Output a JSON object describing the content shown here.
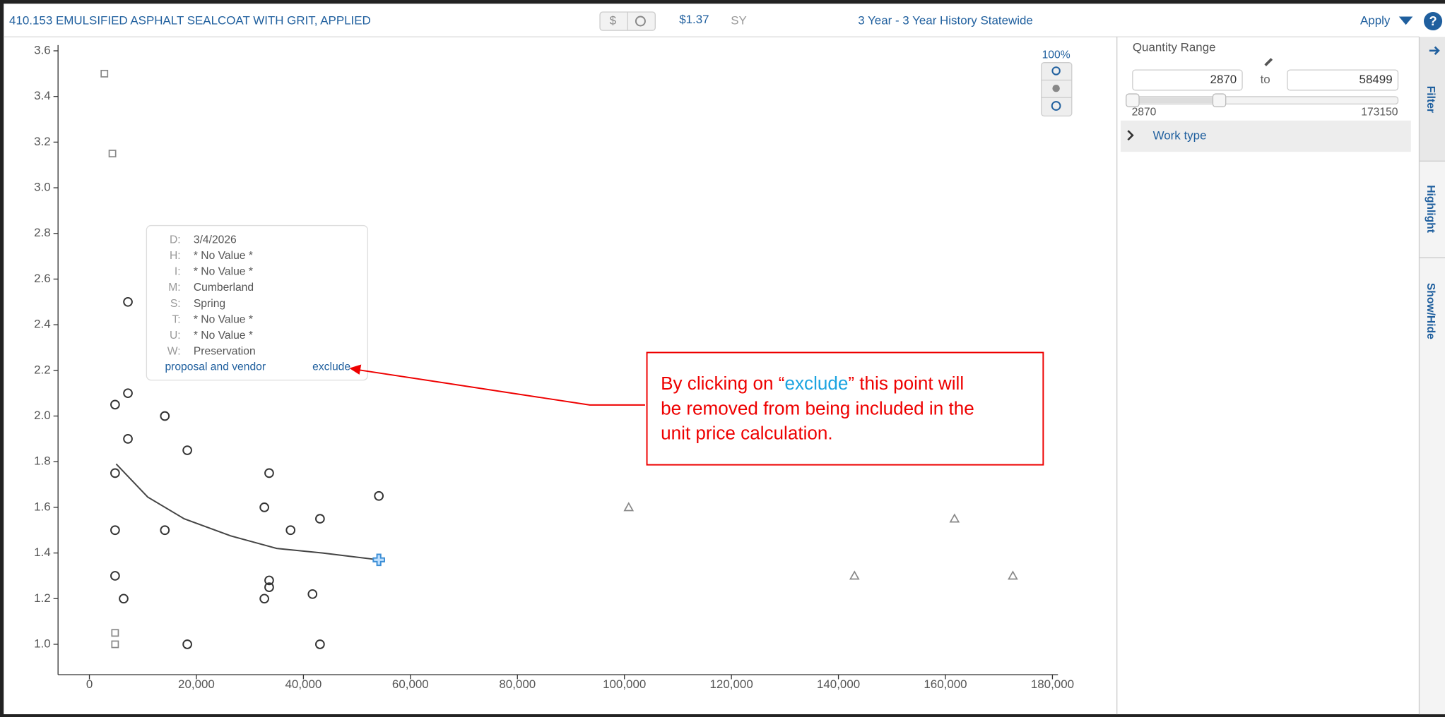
{
  "topbar": {
    "item": "410.153 EMULSIFIED ASPHALT SEALCOAT WITH GRIT, APPLIED",
    "dollar": "$",
    "price": "$1.37",
    "unit": "SY",
    "history": "3 Year - 3 Year History Statewide",
    "apply": "Apply"
  },
  "zoom": {
    "label": "100%"
  },
  "chart_data": {
    "type": "scatter",
    "xlim": [
      -5860,
      181030
    ],
    "ylim": [
      0.867,
      3.625
    ],
    "xticks": [
      0,
      {
        "value": 20000,
        "label": "20,000"
      },
      {
        "value": 40000,
        "label": "40,000"
      },
      {
        "value": 60000,
        "label": "60,000"
      },
      {
        "value": 80000,
        "label": "80,000"
      },
      {
        "value": 100000,
        "label": "100,000"
      },
      {
        "value": 120000,
        "label": "120,000"
      },
      {
        "value": 140000,
        "label": "140,000"
      },
      {
        "value": 160000,
        "label": "160,000"
      },
      {
        "value": 180000,
        "label": "180,000"
      }
    ],
    "yticks": [
      {
        "value": 1.0,
        "label": "1.0"
      },
      1.2,
      1.4,
      1.6,
      1.8,
      {
        "value": 2.0,
        "label": "2.0"
      },
      2.2,
      2.4,
      2.6,
      2.8,
      {
        "value": 3.0,
        "label": "3.0"
      },
      3.2,
      3.4,
      3.6
    ],
    "series": [
      {
        "marker": "square",
        "color": "#888888",
        "x": [
          2800,
          4300,
          4800,
          4800
        ],
        "values": [
          3.5,
          3.15,
          1.05,
          1.0
        ]
      },
      {
        "marker": "circle",
        "color": "#333333",
        "x": [
          7200,
          7200,
          4800,
          14100,
          7200,
          18300,
          4800,
          33600,
          54100,
          32700,
          43100,
          4800,
          14100,
          37600,
          4800,
          33600,
          33600,
          41700,
          6400,
          32700,
          18300,
          43100
        ],
        "values": [
          2.5,
          2.1,
          2.05,
          2.0,
          1.9,
          1.85,
          1.75,
          1.75,
          1.65,
          1.6,
          1.55,
          1.5,
          1.5,
          1.5,
          1.3,
          1.28,
          1.25,
          1.22,
          1.2,
          1.2,
          1.0,
          1.0
        ]
      },
      {
        "marker": "triangle",
        "color": "#888888",
        "x": [
          100800,
          161700,
          143000,
          172600
        ],
        "values": [
          1.6,
          1.55,
          1.3,
          1.3
        ]
      },
      {
        "marker": "cross",
        "color": "#3d8fd6",
        "x": [
          54100
        ],
        "values": [
          1.37
        ]
      }
    ],
    "trend": {
      "color": "#444444",
      "x": [
        5000,
        10900,
        17700,
        26400,
        35000,
        43600,
        54100
      ],
      "values": [
        1.79,
        1.645,
        1.55,
        1.475,
        1.42,
        1.4,
        1.37
      ]
    }
  },
  "tooltip": {
    "rows": [
      {
        "key": "D:",
        "value": "3/4/2026"
      },
      {
        "key": "H:",
        "value": "* No Value *"
      },
      {
        "key": "I:",
        "value": "* No Value *"
      },
      {
        "key": "M:",
        "value": "Cumberland"
      },
      {
        "key": "S:",
        "value": "Spring"
      },
      {
        "key": "T:",
        "value": "* No Value *"
      },
      {
        "key": "U:",
        "value": "* No Value *"
      },
      {
        "key": "W:",
        "value": "Preservation"
      }
    ],
    "links": [
      "proposal and vendor",
      "exclude"
    ]
  },
  "annotation": {
    "line1": [
      "By clicking on “",
      "exclude",
      "” this point will"
    ],
    "line2": "be removed from being included in the",
    "line3": "unit price calculation."
  },
  "filter_panel": {
    "title": "Quantity Range",
    "from": 2870,
    "to_label": "to",
    "to": 58499,
    "slider_min": 2870,
    "slider_max": 173150,
    "work_type": "Work type"
  },
  "side_tabs": [
    "Filter",
    "Highlight",
    "Show/Hide"
  ]
}
